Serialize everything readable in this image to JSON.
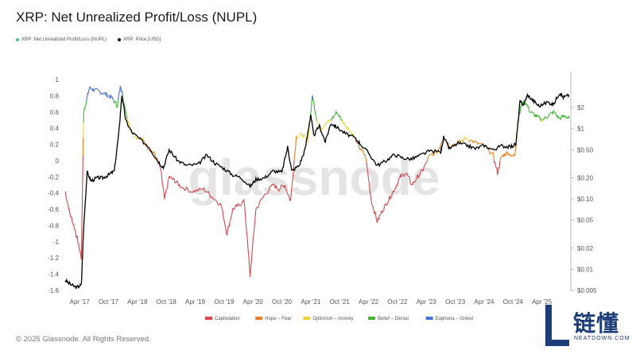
{
  "chart_data": {
    "type": "line",
    "title": "XRP: Net Unrealized Profit/Loss (NUPL)",
    "watermark": "glassnode",
    "x_ticks": [
      "Apr '17",
      "Oct '17",
      "Apr '18",
      "Oct '18",
      "Apr '19",
      "Oct '19",
      "Apr '20",
      "Oct '20",
      "Apr '21",
      "Oct '21",
      "Apr '22",
      "Oct '22",
      "Apr '23",
      "Oct '23",
      "Apr '24",
      "Oct '24",
      "Apr '25"
    ],
    "y_left_ticks": [
      "1",
      "0.8",
      "0.6",
      "0.4",
      "0.2",
      "0",
      "-0.2",
      "-0.4",
      "-0.6",
      "-0.8",
      "-1",
      "-1.2",
      "-1.4",
      "-1.6"
    ],
    "y_left_range": [
      -1.6,
      1
    ],
    "y_right_ticks": [
      "$2",
      "$1",
      "$0.50",
      "$0.20",
      "$0.10",
      "$0.05",
      "$0.02",
      "$0.01",
      "$0.005"
    ],
    "y_right_scale": "log",
    "series_legend": [
      {
        "name": "XRP: Net Unrealized Profit/Loss (NUPL)",
        "color": "#4cc38a"
      },
      {
        "name": "XRP: Price [USD]",
        "color": "#000000"
      }
    ],
    "zone_legend": [
      {
        "name": "Capitulation",
        "color": "#d9454b"
      },
      {
        "name": "Hope – Fear",
        "color": "#e8801f"
      },
      {
        "name": "Optimism – Anxiety",
        "color": "#f0d23c"
      },
      {
        "name": "Belief – Denial",
        "color": "#3cba2c"
      },
      {
        "name": "Euphoria – Greed",
        "color": "#4a6fd6"
      }
    ],
    "nupl_points": [
      [
        2017.0,
        -0.38
      ],
      [
        2017.08,
        -0.65
      ],
      [
        2017.15,
        -0.8
      ],
      [
        2017.22,
        -1.0
      ],
      [
        2017.28,
        -1.2
      ],
      [
        2017.3,
        -0.3
      ],
      [
        2017.32,
        0.6
      ],
      [
        2017.36,
        0.72
      ],
      [
        2017.42,
        0.9
      ],
      [
        2017.5,
        0.87
      ],
      [
        2017.6,
        0.85
      ],
      [
        2017.7,
        0.82
      ],
      [
        2017.8,
        0.78
      ],
      [
        2017.9,
        0.68
      ],
      [
        2017.96,
        0.93
      ],
      [
        2018.0,
        0.78
      ],
      [
        2018.1,
        0.45
      ],
      [
        2018.2,
        0.3
      ],
      [
        2018.35,
        0.25
      ],
      [
        2018.45,
        0.15
      ],
      [
        2018.55,
        0.08
      ],
      [
        2018.65,
        -0.1
      ],
      [
        2018.72,
        -0.48
      ],
      [
        2018.8,
        -0.2
      ],
      [
        2018.9,
        -0.25
      ],
      [
        2019.0,
        -0.32
      ],
      [
        2019.2,
        -0.38
      ],
      [
        2019.4,
        -0.35
      ],
      [
        2019.55,
        -0.45
      ],
      [
        2019.7,
        -0.55
      ],
      [
        2019.8,
        -0.9
      ],
      [
        2019.9,
        -0.6
      ],
      [
        2020.0,
        -0.55
      ],
      [
        2020.1,
        -0.5
      ],
      [
        2020.2,
        -1.42
      ],
      [
        2020.3,
        -0.6
      ],
      [
        2020.45,
        -0.42
      ],
      [
        2020.6,
        -0.3
      ],
      [
        2020.7,
        -0.35
      ],
      [
        2020.8,
        -0.3
      ],
      [
        2020.9,
        -0.5
      ],
      [
        2021.0,
        0.3
      ],
      [
        2021.1,
        0.32
      ],
      [
        2021.2,
        0.25
      ],
      [
        2021.28,
        0.8
      ],
      [
        2021.35,
        0.52
      ],
      [
        2021.42,
        0.38
      ],
      [
        2021.5,
        0.45
      ],
      [
        2021.6,
        0.5
      ],
      [
        2021.7,
        0.6
      ],
      [
        2021.8,
        0.48
      ],
      [
        2021.9,
        0.4
      ],
      [
        2022.0,
        0.3
      ],
      [
        2022.1,
        0.15
      ],
      [
        2022.2,
        0.05
      ],
      [
        2022.3,
        -0.5
      ],
      [
        2022.4,
        -0.75
      ],
      [
        2022.5,
        -0.6
      ],
      [
        2022.6,
        -0.48
      ],
      [
        2022.7,
        -0.35
      ],
      [
        2022.8,
        -0.2
      ],
      [
        2022.9,
        -0.15
      ],
      [
        2023.0,
        -0.3
      ],
      [
        2023.1,
        -0.2
      ],
      [
        2023.2,
        -0.1
      ],
      [
        2023.3,
        0.05
      ],
      [
        2023.45,
        0.12
      ],
      [
        2023.55,
        0.3
      ],
      [
        2023.65,
        0.18
      ],
      [
        2023.8,
        0.22
      ],
      [
        2023.95,
        0.28
      ],
      [
        2024.1,
        0.22
      ],
      [
        2024.25,
        0.18
      ],
      [
        2024.4,
        0.08
      ],
      [
        2024.48,
        -0.15
      ],
      [
        2024.55,
        0.05
      ],
      [
        2024.65,
        0.1
      ],
      [
        2024.78,
        0.05
      ],
      [
        2024.85,
        0.55
      ],
      [
        2024.9,
        0.7
      ],
      [
        2024.97,
        0.72
      ],
      [
        2025.05,
        0.6
      ],
      [
        2025.15,
        0.55
      ],
      [
        2025.25,
        0.5
      ],
      [
        2025.35,
        0.55
      ],
      [
        2025.45,
        0.6
      ],
      [
        2025.55,
        0.52
      ],
      [
        2025.65,
        0.55
      ],
      [
        2025.72,
        0.52
      ]
    ],
    "price_points": [
      [
        2017.0,
        0.007
      ],
      [
        2017.1,
        0.006
      ],
      [
        2017.2,
        0.0055
      ],
      [
        2017.28,
        0.006
      ],
      [
        2017.32,
        0.04
      ],
      [
        2017.38,
        0.24
      ],
      [
        2017.45,
        0.18
      ],
      [
        2017.55,
        0.2
      ],
      [
        2017.65,
        0.2
      ],
      [
        2017.75,
        0.22
      ],
      [
        2017.85,
        0.25
      ],
      [
        2017.93,
        0.9
      ],
      [
        2017.98,
        3.0
      ],
      [
        2018.05,
        1.3
      ],
      [
        2018.15,
        0.9
      ],
      [
        2018.3,
        0.7
      ],
      [
        2018.45,
        0.55
      ],
      [
        2018.6,
        0.35
      ],
      [
        2018.7,
        0.28
      ],
      [
        2018.8,
        0.5
      ],
      [
        2018.95,
        0.35
      ],
      [
        2019.1,
        0.3
      ],
      [
        2019.3,
        0.31
      ],
      [
        2019.45,
        0.42
      ],
      [
        2019.6,
        0.32
      ],
      [
        2019.75,
        0.27
      ],
      [
        2019.9,
        0.22
      ],
      [
        2020.05,
        0.2
      ],
      [
        2020.2,
        0.15
      ],
      [
        2020.3,
        0.19
      ],
      [
        2020.45,
        0.2
      ],
      [
        2020.6,
        0.25
      ],
      [
        2020.75,
        0.24
      ],
      [
        2020.85,
        0.55
      ],
      [
        2020.92,
        0.25
      ],
      [
        2021.05,
        0.3
      ],
      [
        2021.15,
        0.5
      ],
      [
        2021.25,
        1.6
      ],
      [
        2021.3,
        0.8
      ],
      [
        2021.4,
        1.1
      ],
      [
        2021.5,
        0.65
      ],
      [
        2021.6,
        1.2
      ],
      [
        2021.7,
        1.05
      ],
      [
        2021.85,
        0.85
      ],
      [
        2022.0,
        0.75
      ],
      [
        2022.1,
        0.62
      ],
      [
        2022.25,
        0.45
      ],
      [
        2022.4,
        0.3
      ],
      [
        2022.55,
        0.35
      ],
      [
        2022.7,
        0.43
      ],
      [
        2022.85,
        0.38
      ],
      [
        2023.0,
        0.37
      ],
      [
        2023.15,
        0.42
      ],
      [
        2023.3,
        0.48
      ],
      [
        2023.5,
        0.47
      ],
      [
        2023.55,
        0.75
      ],
      [
        2023.65,
        0.52
      ],
      [
        2023.8,
        0.62
      ],
      [
        2023.95,
        0.58
      ],
      [
        2024.1,
        0.52
      ],
      [
        2024.25,
        0.58
      ],
      [
        2024.4,
        0.5
      ],
      [
        2024.55,
        0.57
      ],
      [
        2024.7,
        0.55
      ],
      [
        2024.8,
        0.6
      ],
      [
        2024.87,
        2.4
      ],
      [
        2024.93,
        2.2
      ],
      [
        2025.0,
        3.0
      ],
      [
        2025.1,
        2.5
      ],
      [
        2025.2,
        2.1
      ],
      [
        2025.35,
        2.4
      ],
      [
        2025.45,
        2.2
      ],
      [
        2025.55,
        3.2
      ],
      [
        2025.62,
        2.8
      ],
      [
        2025.72,
        3.0
      ]
    ]
  }
}
